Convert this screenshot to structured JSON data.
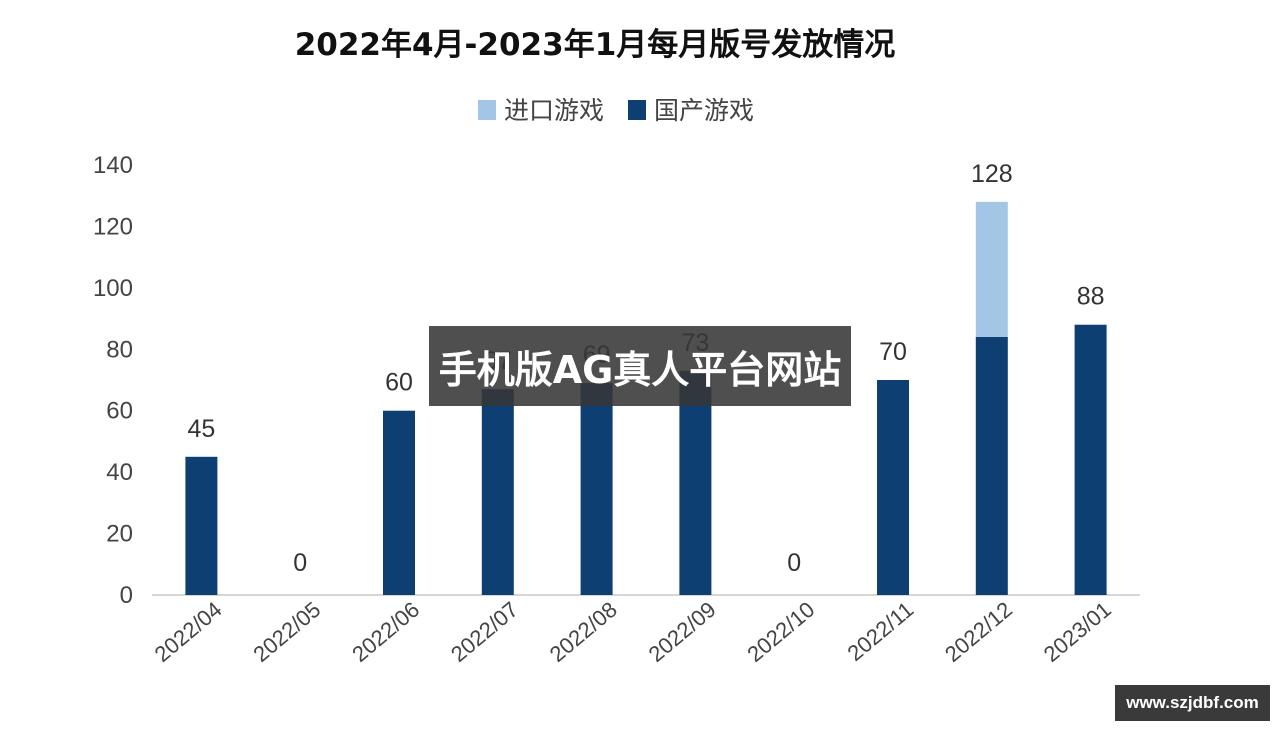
{
  "chart_data": {
    "type": "bar",
    "stacked": true,
    "title": "2022年4月-2023年1月每月版号发放情况",
    "categories": [
      "2022/04",
      "2022/05",
      "2022/06",
      "2022/07",
      "2022/08",
      "2022/09",
      "2022/10",
      "2022/11",
      "2022/12",
      "2023/01"
    ],
    "series": [
      {
        "name": "国产游戏",
        "color": "#0d3f73",
        "values": [
          45,
          0,
          60,
          67,
          69,
          73,
          0,
          70,
          84,
          88
        ]
      },
      {
        "name": "进口游戏",
        "color": "#a3c6e6",
        "values": [
          0,
          0,
          0,
          0,
          0,
          0,
          0,
          0,
          44,
          0
        ]
      }
    ],
    "legend": [
      {
        "name": "进口游戏",
        "color": "#a3c6e6"
      },
      {
        "name": "国产游戏",
        "color": "#0d3f73"
      }
    ],
    "data_labels": [
      "45",
      "0",
      "60",
      "67",
      "69",
      "73",
      "0",
      "70",
      "128",
      "88"
    ],
    "y_ticks": [
      "0",
      "20",
      "40",
      "60",
      "80",
      "100",
      "120",
      "140"
    ],
    "ylim": [
      0,
      140
    ],
    "legend_position": "top-center",
    "grid": false
  },
  "overlay": {
    "text": "手机版AG真人平台网站"
  },
  "watermark": {
    "text": "www.szjdbf.com"
  }
}
